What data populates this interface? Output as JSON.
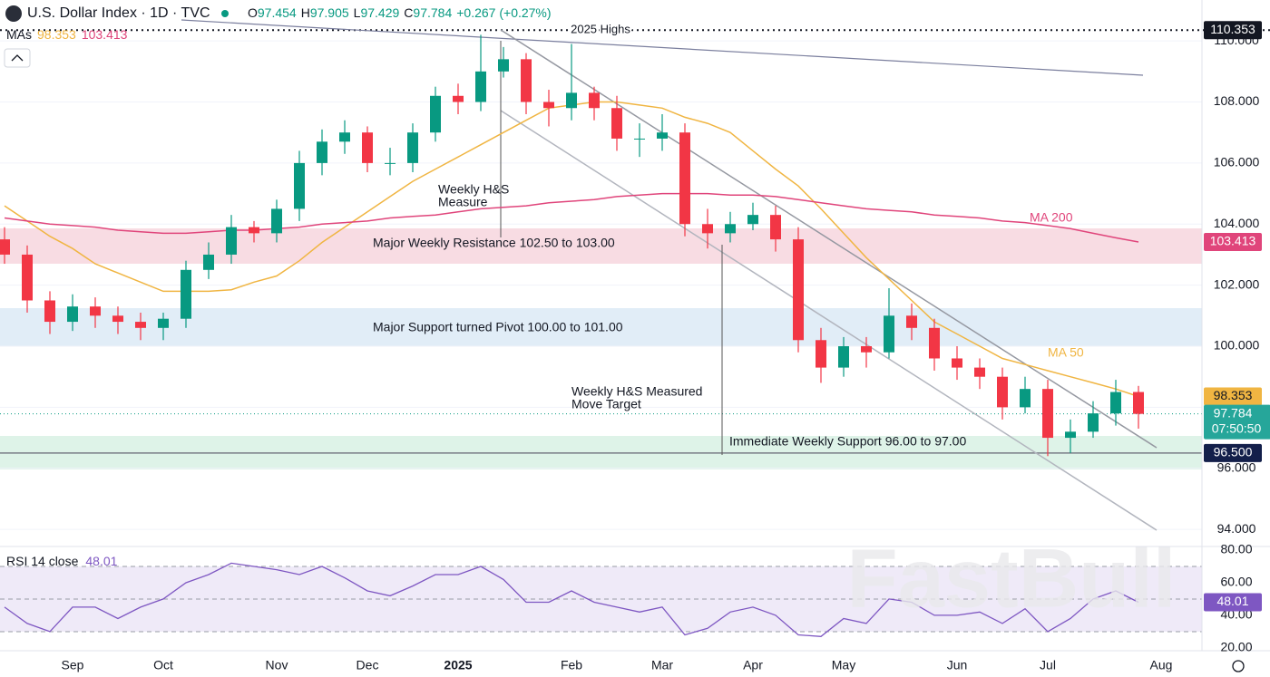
{
  "header": {
    "title": "U.S. Dollar Index · 1D · TVC",
    "ohlc_labels": [
      "O",
      "H",
      "L",
      "C"
    ],
    "ohlc_values": [
      97.454,
      97.905,
      97.429,
      97.784
    ],
    "change_label": "+0.267 (+0.27%)",
    "mas_label": "MAs"
  },
  "watermark": "FastBull",
  "chart_data": [
    {
      "type": "candlestick",
      "categories": [
        null,
        null,
        null,
        "Sep",
        null,
        null,
        null,
        "Oct",
        null,
        null,
        null,
        null,
        "Nov",
        null,
        null,
        null,
        "Dec",
        null,
        null,
        null,
        "2025",
        null,
        null,
        null,
        null,
        "Feb",
        null,
        null,
        null,
        "Mar",
        null,
        null,
        null,
        "Apr",
        null,
        null,
        null,
        "May",
        null,
        null,
        null,
        null,
        "Jun",
        null,
        null,
        null,
        "Jul",
        null,
        null,
        null,
        null,
        "Aug"
      ],
      "open": [
        103.5,
        103.0,
        101.5,
        100.8,
        101.3,
        101.0,
        100.8,
        100.6,
        100.9,
        102.5,
        103.0,
        103.9,
        103.7,
        104.5,
        106.0,
        106.7,
        107.0,
        106.0,
        106.0,
        107.0,
        108.2,
        108.0,
        109.0,
        109.4,
        108.0,
        107.8,
        108.3,
        107.8,
        106.8,
        106.8,
        107.0,
        104.0,
        103.7,
        104.0,
        104.3,
        103.5,
        100.2,
        99.3,
        100.0,
        99.8,
        101.0,
        100.6,
        99.6,
        99.3,
        99.0,
        98.0,
        98.6,
        97.0,
        97.2,
        97.8,
        98.5,
        null
      ],
      "high": [
        103.9,
        103.3,
        101.8,
        101.7,
        101.6,
        101.3,
        101.1,
        101.1,
        102.8,
        103.4,
        104.3,
        104.1,
        104.8,
        106.4,
        107.1,
        107.4,
        107.2,
        106.5,
        107.3,
        108.5,
        108.6,
        110.2,
        109.8,
        109.6,
        108.4,
        109.9,
        108.5,
        108.2,
        107.3,
        107.6,
        107.3,
        104.5,
        104.4,
        104.7,
        104.6,
        103.9,
        100.6,
        100.3,
        100.3,
        101.9,
        101.4,
        100.9,
        100.0,
        99.6,
        99.3,
        99.0,
        98.9,
        97.6,
        98.2,
        98.9,
        98.7,
        null
      ],
      "low": [
        102.7,
        101.1,
        100.4,
        100.5,
        100.6,
        100.4,
        100.2,
        100.2,
        100.6,
        102.2,
        102.7,
        103.4,
        103.4,
        104.1,
        105.6,
        106.3,
        105.7,
        105.6,
        105.7,
        106.7,
        107.6,
        107.7,
        108.8,
        107.6,
        107.2,
        107.4,
        107.4,
        106.4,
        106.2,
        106.4,
        103.6,
        103.2,
        103.4,
        103.8,
        103.1,
        99.8,
        98.8,
        99.0,
        99.3,
        99.6,
        100.2,
        99.2,
        98.9,
        98.6,
        97.6,
        97.8,
        96.4,
        96.5,
        97.0,
        97.4,
        97.3,
        null
      ],
      "close": [
        103.0,
        101.5,
        100.8,
        101.3,
        101.0,
        100.8,
        100.6,
        100.9,
        102.5,
        103.0,
        103.9,
        103.7,
        104.5,
        106.0,
        106.7,
        107.0,
        106.0,
        106.0,
        107.0,
        108.2,
        108.0,
        109.0,
        109.4,
        108.0,
        107.8,
        108.3,
        107.8,
        106.8,
        106.8,
        107.0,
        104.0,
        103.7,
        104.0,
        104.3,
        103.5,
        100.2,
        99.3,
        100.0,
        99.8,
        101.0,
        100.6,
        99.6,
        99.3,
        99.0,
        98.0,
        98.6,
        97.0,
        97.2,
        97.8,
        98.5,
        97.784,
        null
      ],
      "up_color": "#089981",
      "down_color": "#f23645",
      "series": [
        {
          "name": "MA 50",
          "color": "#f0b542",
          "values": [
            104.6,
            104.1,
            103.6,
            103.2,
            102.7,
            102.4,
            102.1,
            101.8,
            101.8,
            101.8,
            101.85,
            102.1,
            102.3,
            102.8,
            103.4,
            103.9,
            104.4,
            104.9,
            105.4,
            105.8,
            106.2,
            106.6,
            107.0,
            107.4,
            107.8,
            107.9,
            108.0,
            108.0,
            107.9,
            107.8,
            107.5,
            107.3,
            107.0,
            106.4,
            105.8,
            105.25,
            104.5,
            103.7,
            102.9,
            102.2,
            101.5,
            100.8,
            100.4,
            100.0,
            99.6,
            99.4,
            99.2,
            99.0,
            98.8,
            98.6,
            98.353,
            null
          ]
        },
        {
          "name": "MA 200",
          "color": "#e0457b",
          "values": [
            104.2,
            104.1,
            104.0,
            103.95,
            103.9,
            103.8,
            103.75,
            103.7,
            103.7,
            103.75,
            103.8,
            103.8,
            103.85,
            103.9,
            104.0,
            104.05,
            104.1,
            104.2,
            104.25,
            104.3,
            104.4,
            104.5,
            104.55,
            104.6,
            104.7,
            104.75,
            104.8,
            104.9,
            104.95,
            105.0,
            105.0,
            105.0,
            104.95,
            104.95,
            104.9,
            104.8,
            104.7,
            104.6,
            104.5,
            104.45,
            104.4,
            104.3,
            104.25,
            104.2,
            104.1,
            104.05,
            103.95,
            103.85,
            103.7,
            103.55,
            103.413,
            null
          ]
        }
      ],
      "ylim": [
        93.44,
        111.34
      ],
      "yticks": [
        {
          "value": 94,
          "label": "94.000"
        },
        {
          "value": 96,
          "label": "96.000"
        },
        {
          "value": 98,
          "label": "98.000"
        },
        {
          "value": 100,
          "label": "100.000"
        },
        {
          "value": 102,
          "label": "102.000"
        },
        {
          "value": 104,
          "label": "104.000"
        },
        {
          "value": 106,
          "label": "106.000"
        },
        {
          "value": 108,
          "label": "108.000"
        },
        {
          "value": 110,
          "label": "110.000"
        }
      ],
      "grid": true,
      "highs": {
        "text": "2025 Highs",
        "value": 110.353
      },
      "support_line": {
        "value": 96.5,
        "label": "96.500"
      },
      "countdown": "07:50:50",
      "annotations": {
        "hs_measure": [
          "Weekly H&S",
          "Measure"
        ],
        "resistance": "Major Weekly Resistance 102.50 to 103.00",
        "pivot": "Major Support turned Pivot 100.00 to 101.00",
        "target": [
          "Weekly H&S Measured",
          "Move Target"
        ],
        "support": "Immediate Weekly Support 96.00 to 97.00"
      }
    },
    {
      "type": "line",
      "series": [
        {
          "name": "RSI 14 close",
          "color": "#7e57c2",
          "values": [
            45,
            35,
            30,
            45,
            45,
            38,
            45,
            50,
            60,
            65,
            72,
            70,
            68,
            65,
            70,
            63,
            55,
            52,
            58,
            65,
            65,
            70,
            62,
            48,
            48,
            55,
            48,
            45,
            42,
            45,
            28,
            32,
            42,
            45,
            40,
            28,
            27,
            38,
            35,
            50,
            48,
            40,
            40,
            42,
            35,
            44,
            30,
            38,
            50,
            55,
            48.01,
            null
          ]
        }
      ],
      "ylim": [
        18.3,
        82.2
      ],
      "yticks": [
        {
          "value": 20,
          "label": "20.00"
        },
        {
          "value": 40,
          "label": "40.00"
        },
        {
          "value": 60,
          "label": "60.00"
        },
        {
          "value": 80,
          "label": "80.00"
        }
      ],
      "levels": [
        30,
        50,
        70
      ]
    }
  ]
}
